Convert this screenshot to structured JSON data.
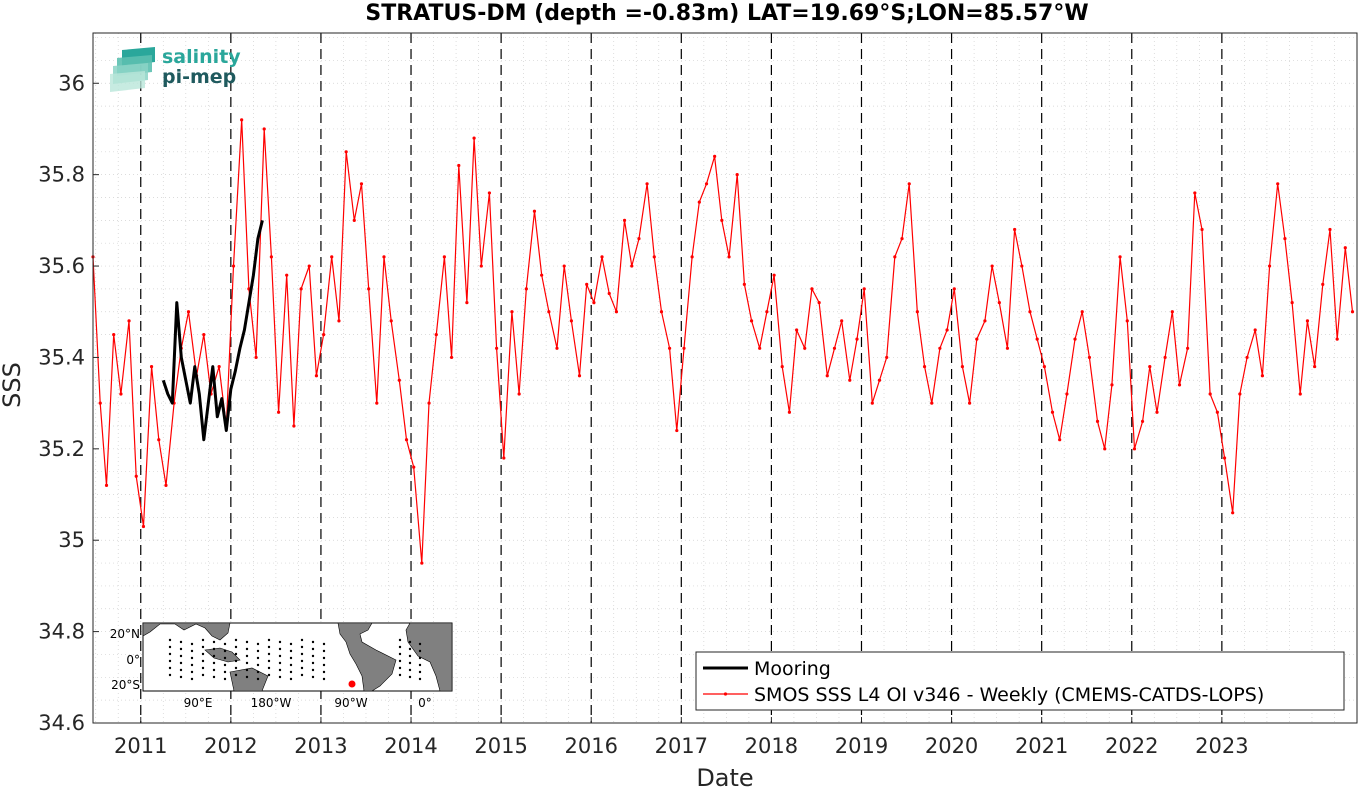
{
  "logo": {
    "line1": "salinity",
    "line2": "pi-mep"
  },
  "inset_map": {
    "lat_labels": [
      "20°N",
      "0°",
      "20°S"
    ],
    "lon_labels": [
      "90°E",
      "180°W",
      "90°W",
      "0°"
    ]
  },
  "colors": {
    "mooring": "#000000",
    "smos": "#ff0000",
    "logo_teal": "#2aa79b",
    "logo_dark": "#1f5a5e"
  },
  "chart_data": {
    "type": "line",
    "title": "STRATUS-DM (depth =-0.83m) LAT=19.69°S;LON=85.57°W",
    "xlabel": "Date",
    "ylabel": "SSS",
    "xlim": [
      2010.47,
      2024.5
    ],
    "ylim": [
      34.6,
      36.11
    ],
    "xticks": [
      2011,
      2012,
      2013,
      2014,
      2015,
      2016,
      2017,
      2018,
      2019,
      2020,
      2021,
      2022,
      2023
    ],
    "xtick_labels": [
      "2011",
      "2012",
      "2013",
      "2014",
      "2015",
      "2016",
      "2017",
      "2018",
      "2019",
      "2020",
      "2021",
      "2022",
      "2023"
    ],
    "yticks": [
      34.6,
      34.8,
      35,
      35.2,
      35.4,
      35.6,
      35.8,
      36
    ],
    "ytick_labels": [
      "34.6",
      "34.8",
      "35",
      "35.2",
      "35.4",
      "35.6",
      "35.8",
      "36"
    ],
    "year_lines": [
      2011,
      2012,
      2013,
      2014,
      2015,
      2016,
      2017,
      2018,
      2019,
      2020,
      2021,
      2022,
      2023
    ],
    "grid": true,
    "legend_position": "bottom-right",
    "series": [
      {
        "name": "Mooring",
        "style": "thick-line",
        "x": [
          2011.25,
          2011.3,
          2011.35,
          2011.4,
          2011.45,
          2011.5,
          2011.55,
          2011.6,
          2011.65,
          2011.7,
          2011.75,
          2011.8,
          2011.85,
          2011.9,
          2011.95,
          2012.0,
          2012.05,
          2012.1,
          2012.15,
          2012.2,
          2012.25,
          2012.3,
          2012.35
        ],
        "y": [
          35.35,
          35.32,
          35.3,
          35.52,
          35.4,
          35.35,
          35.3,
          35.38,
          35.32,
          35.22,
          35.3,
          35.38,
          35.27,
          35.31,
          35.24,
          35.33,
          35.37,
          35.42,
          35.46,
          35.52,
          35.58,
          35.66,
          35.7
        ]
      },
      {
        "name": "SMOS SSS L4 OI v346 - Weekly (CMEMS-CATDS-LOPS)",
        "style": "line-with-dots",
        "x": [
          2010.47,
          2010.55,
          2010.62,
          2010.7,
          2010.78,
          2010.87,
          2010.95,
          2011.03,
          2011.12,
          2011.2,
          2011.28,
          2011.37,
          2011.45,
          2011.53,
          2011.62,
          2011.7,
          2011.78,
          2011.87,
          2011.95,
          2012.03,
          2012.12,
          2012.2,
          2012.28,
          2012.37,
          2012.45,
          2012.53,
          2012.62,
          2012.7,
          2012.78,
          2012.87,
          2012.95,
          2013.03,
          2013.12,
          2013.2,
          2013.28,
          2013.37,
          2013.45,
          2013.53,
          2013.62,
          2013.7,
          2013.78,
          2013.87,
          2013.95,
          2014.03,
          2014.12,
          2014.2,
          2014.28,
          2014.37,
          2014.45,
          2014.53,
          2014.62,
          2014.7,
          2014.78,
          2014.87,
          2014.95,
          2015.03,
          2015.12,
          2015.2,
          2015.28,
          2015.37,
          2015.45,
          2015.53,
          2015.62,
          2015.7,
          2015.78,
          2015.87,
          2015.95,
          2016.03,
          2016.12,
          2016.2,
          2016.28,
          2016.37,
          2016.45,
          2016.53,
          2016.62,
          2016.7,
          2016.78,
          2016.87,
          2016.95,
          2017.03,
          2017.12,
          2017.2,
          2017.28,
          2017.37,
          2017.45,
          2017.53,
          2017.62,
          2017.7,
          2017.78,
          2017.87,
          2017.95,
          2018.03,
          2018.12,
          2018.2,
          2018.28,
          2018.37,
          2018.45,
          2018.53,
          2018.62,
          2018.7,
          2018.78,
          2018.87,
          2018.95,
          2019.03,
          2019.12,
          2019.2,
          2019.28,
          2019.37,
          2019.45,
          2019.53,
          2019.62,
          2019.7,
          2019.78,
          2019.87,
          2019.95,
          2020.03,
          2020.12,
          2020.2,
          2020.28,
          2020.37,
          2020.45,
          2020.53,
          2020.62,
          2020.7,
          2020.78,
          2020.87,
          2020.95,
          2021.03,
          2021.12,
          2021.2,
          2021.28,
          2021.37,
          2021.45,
          2021.53,
          2021.62,
          2021.7,
          2021.78,
          2021.87,
          2021.95,
          2022.03,
          2022.12,
          2022.2,
          2022.28,
          2022.37,
          2022.45,
          2022.53,
          2022.62,
          2022.7,
          2022.78,
          2022.87,
          2022.95,
          2023.03,
          2023.12,
          2023.2,
          2023.28,
          2023.37,
          2023.45,
          2023.53,
          2023.62,
          2023.7,
          2023.78,
          2023.87,
          2023.95,
          2024.03,
          2024.12,
          2024.2,
          2024.28,
          2024.37,
          2024.45
        ],
        "y": [
          35.62,
          35.3,
          35.12,
          35.45,
          35.32,
          35.48,
          35.14,
          35.03,
          35.38,
          35.22,
          35.12,
          35.3,
          35.42,
          35.5,
          35.36,
          35.45,
          35.32,
          35.38,
          35.25,
          35.6,
          35.92,
          35.55,
          35.4,
          35.9,
          35.62,
          35.28,
          35.58,
          35.25,
          35.55,
          35.6,
          35.36,
          35.45,
          35.62,
          35.48,
          35.85,
          35.7,
          35.78,
          35.55,
          35.3,
          35.62,
          35.48,
          35.35,
          35.22,
          35.16,
          34.95,
          35.3,
          35.45,
          35.62,
          35.4,
          35.82,
          35.52,
          35.88,
          35.6,
          35.76,
          35.42,
          35.18,
          35.5,
          35.32,
          35.55,
          35.72,
          35.58,
          35.5,
          35.42,
          35.6,
          35.48,
          35.36,
          35.56,
          35.52,
          35.62,
          35.54,
          35.5,
          35.7,
          35.6,
          35.66,
          35.78,
          35.62,
          35.5,
          35.42,
          35.24,
          35.42,
          35.62,
          35.74,
          35.78,
          35.84,
          35.7,
          35.62,
          35.8,
          35.56,
          35.48,
          35.42,
          35.5,
          35.58,
          35.38,
          35.28,
          35.46,
          35.42,
          35.55,
          35.52,
          35.36,
          35.42,
          35.48,
          35.35,
          35.44,
          35.55,
          35.3,
          35.35,
          35.4,
          35.62,
          35.66,
          35.78,
          35.5,
          35.38,
          35.3,
          35.42,
          35.46,
          35.55,
          35.38,
          35.3,
          35.44,
          35.48,
          35.6,
          35.52,
          35.42,
          35.68,
          35.6,
          35.5,
          35.44,
          35.38,
          35.28,
          35.22,
          35.32,
          35.44,
          35.5,
          35.4,
          35.26,
          35.2,
          35.34,
          35.62,
          35.48,
          35.2,
          35.26,
          35.38,
          35.28,
          35.4,
          35.5,
          35.34,
          35.42,
          35.76,
          35.68,
          35.32,
          35.28,
          35.18,
          35.06,
          35.32,
          35.4,
          35.46,
          35.36,
          35.6,
          35.78,
          35.66,
          35.52,
          35.32,
          35.48,
          35.38,
          35.56,
          35.68,
          35.44,
          35.64,
          35.5
        ]
      }
    ]
  }
}
